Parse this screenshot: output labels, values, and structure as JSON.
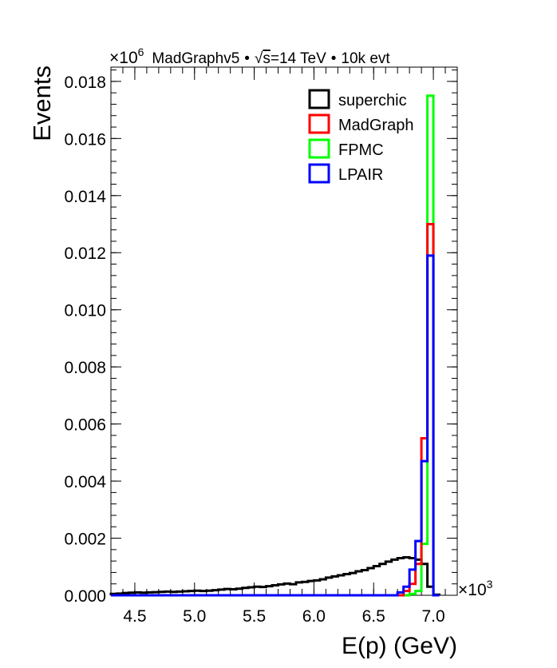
{
  "chart_data": {
    "type": "step",
    "header": {
      "exponent_label": "×10",
      "exponent_power": "6",
      "generator": "MadGraphv5",
      "bullet": "•",
      "sqrt_symbol": "√",
      "sqrt_arg": "s",
      "energy": "=14 TeV",
      "events_label": "10k evt"
    },
    "ylabel": "Events",
    "xlabel": "E(p) (GeV)",
    "x_multiplier": "×10",
    "x_multiplier_power": "3",
    "xlim": [
      4.3,
      7.2
    ],
    "ylim": [
      0,
      0.0185
    ],
    "x_ticks": [
      {
        "v": 4.5,
        "label": "4.5"
      },
      {
        "v": 5.0,
        "label": "5.0"
      },
      {
        "v": 5.5,
        "label": "5.5"
      },
      {
        "v": 6.0,
        "label": "6.0"
      },
      {
        "v": 6.5,
        "label": "6.5"
      },
      {
        "v": 7.0,
        "label": "7.0"
      }
    ],
    "y_ticks": [
      {
        "v": 0.0,
        "label": "0.000"
      },
      {
        "v": 0.002,
        "label": "0.002"
      },
      {
        "v": 0.004,
        "label": "0.004"
      },
      {
        "v": 0.006,
        "label": "0.006"
      },
      {
        "v": 0.008,
        "label": "0.008"
      },
      {
        "v": 0.01,
        "label": "0.010"
      },
      {
        "v": 0.012,
        "label": "0.012"
      },
      {
        "v": 0.014,
        "label": "0.014"
      },
      {
        "v": 0.016,
        "label": "0.016"
      },
      {
        "v": 0.018,
        "label": "0.018"
      }
    ],
    "legend_position": "top-right",
    "series": [
      {
        "name": "superchic",
        "color": "#000000",
        "edges": [
          4.3,
          4.35,
          4.4,
          4.45,
          4.5,
          4.55,
          4.6,
          4.65,
          4.7,
          4.75,
          4.8,
          4.85,
          4.9,
          4.95,
          5.0,
          5.05,
          5.1,
          5.15,
          5.2,
          5.25,
          5.3,
          5.35,
          5.4,
          5.45,
          5.5,
          5.55,
          5.6,
          5.65,
          5.7,
          5.75,
          5.8,
          5.85,
          5.9,
          5.95,
          6.0,
          6.05,
          6.1,
          6.15,
          6.2,
          6.25,
          6.3,
          6.35,
          6.4,
          6.45,
          6.5,
          6.55,
          6.6,
          6.65,
          6.7,
          6.75,
          6.8,
          6.85,
          6.9,
          6.95,
          7.0,
          7.05
        ],
        "values": [
          5e-05,
          6e-05,
          8e-05,
          9e-05,
          0.0001,
          9e-05,
          0.0001,
          0.00011,
          0.00012,
          0.00013,
          0.00012,
          0.00013,
          0.00014,
          0.00015,
          0.00016,
          0.00015,
          0.00016,
          0.00018,
          0.0002,
          0.00022,
          0.00021,
          0.00023,
          0.00026,
          0.00028,
          0.0003,
          0.00029,
          0.00032,
          0.00035,
          0.00038,
          0.00041,
          0.00039,
          0.00045,
          0.00047,
          0.0005,
          0.00052,
          0.00056,
          0.00062,
          0.00066,
          0.0007,
          0.00074,
          0.00078,
          0.00084,
          0.00088,
          0.00095,
          0.00102,
          0.0011,
          0.00118,
          0.00125,
          0.0013,
          0.00133,
          0.0013,
          0.00125,
          0.0011,
          0.0003,
          2e-05
        ]
      },
      {
        "name": "MadGraph",
        "color": "#ff0000",
        "edges": [
          4.3,
          6.75,
          6.8,
          6.85,
          6.9,
          6.95,
          7.0,
          7.05
        ],
        "values": [
          0.0,
          0.00015,
          0.0004,
          0.0011,
          0.0055,
          0.013,
          0.0
        ]
      },
      {
        "name": "FPMC",
        "color": "#00ff00",
        "edges": [
          4.3,
          6.8,
          6.85,
          6.9,
          6.95,
          7.0,
          7.05
        ],
        "values": [
          0.0,
          5e-05,
          0.00015,
          0.0018,
          0.0175,
          0.0
        ]
      },
      {
        "name": "LPAIR",
        "color": "#0000ff",
        "edges": [
          4.3,
          6.7,
          6.75,
          6.8,
          6.85,
          6.9,
          6.95,
          7.0,
          7.05
        ],
        "values": [
          0.0,
          0.0001,
          0.0003,
          0.0009,
          0.0019,
          0.0047,
          0.0119,
          0.0
        ]
      }
    ]
  }
}
